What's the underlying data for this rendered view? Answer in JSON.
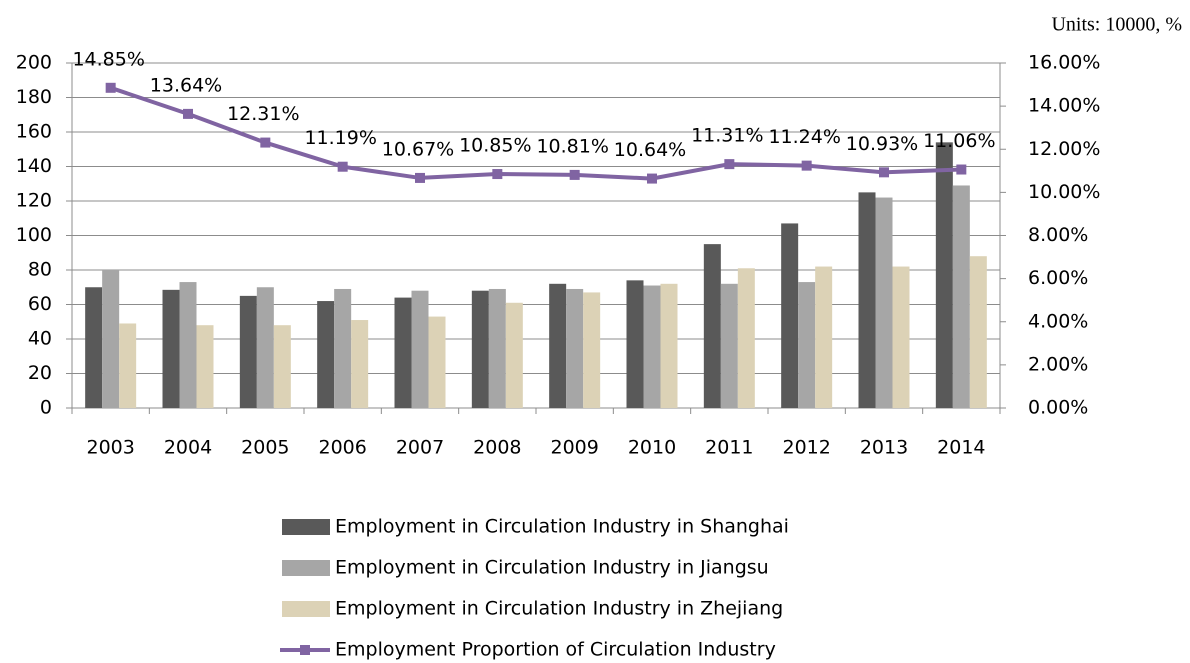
{
  "chart_data": {
    "type": "bar",
    "units": "Units: 10000, %",
    "categories": [
      "2003",
      "2004",
      "2005",
      "2006",
      "2007",
      "2008",
      "2009",
      "2010",
      "2011",
      "2012",
      "2013",
      "2014"
    ],
    "series": [
      {
        "name": "Employment in Circulation Industry in Shanghai",
        "color": "#595959",
        "values": [
          70,
          68.5,
          65,
          62,
          64,
          68,
          72,
          74,
          95,
          107,
          125,
          154
        ]
      },
      {
        "name": "Employment in Circulation Industry in Jiangsu",
        "color": "#a6a6a6",
        "values": [
          80,
          73,
          70,
          69,
          68,
          69,
          69,
          71,
          72,
          73,
          122,
          129
        ]
      },
      {
        "name": "Employment in Circulation Industry in Zhejiang",
        "color": "#dcd2b6",
        "values": [
          49,
          48,
          48,
          51,
          53,
          61,
          67,
          72,
          81,
          82,
          82,
          88
        ]
      },
      {
        "name": "Employment Proportion of Circulation Industry",
        "color": "#8064a2",
        "type": "line",
        "axis": "y2",
        "values": [
          14.85,
          13.64,
          12.31,
          11.19,
          10.67,
          10.85,
          10.81,
          10.64,
          11.31,
          11.24,
          10.93,
          11.06
        ],
        "value_labels": [
          "14.85%",
          "13.64%",
          "12.31%",
          "11.19%",
          "10.67%",
          "10.85%",
          "10.81%",
          "10.64%",
          "11.31%",
          "11.24%",
          "10.93%",
          "11.06%"
        ]
      }
    ],
    "ylim": [
      0,
      200
    ],
    "yticks": [
      0,
      20,
      40,
      60,
      80,
      100,
      120,
      140,
      160,
      180,
      200
    ],
    "y2lim": [
      0,
      16
    ],
    "y2ticks": [
      {
        "value": 0,
        "label": "0.00%"
      },
      {
        "value": 2,
        "label": "2.00%"
      },
      {
        "value": 4,
        "label": "4.00%"
      },
      {
        "value": 6,
        "label": "6.00%"
      },
      {
        "value": 8,
        "label": "8.00%"
      },
      {
        "value": 10,
        "label": "10.00%"
      },
      {
        "value": 12,
        "label": "12.00%"
      },
      {
        "value": 14,
        "label": "14.00%"
      },
      {
        "value": 16,
        "label": "16.00%"
      }
    ],
    "grid": true
  }
}
